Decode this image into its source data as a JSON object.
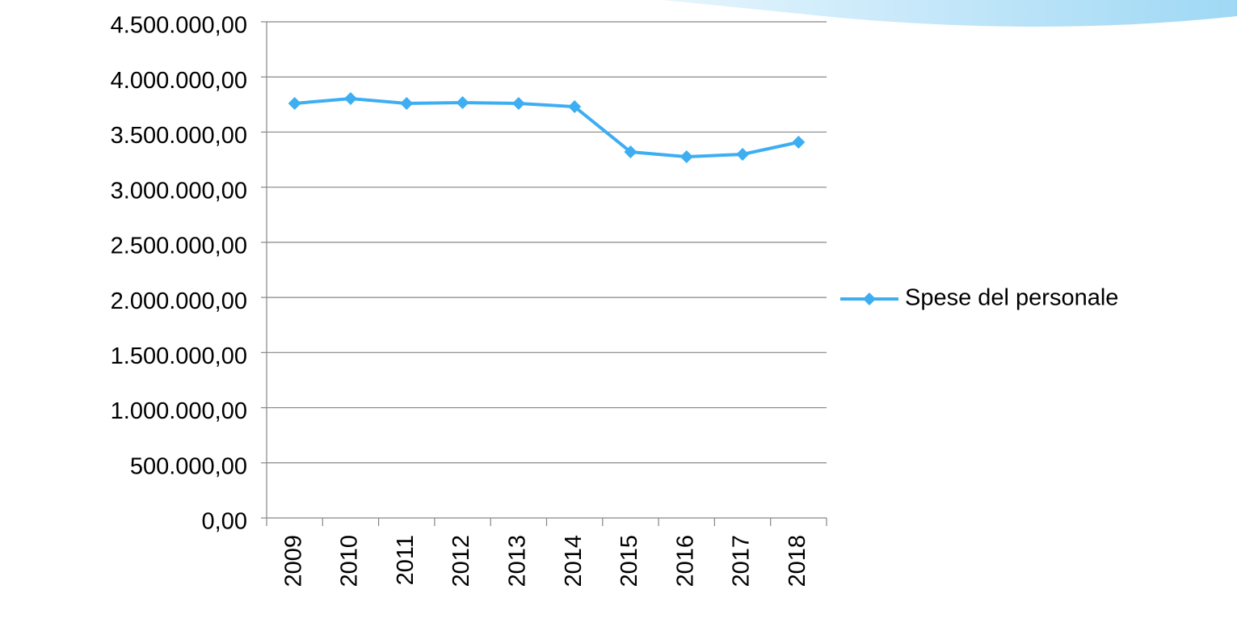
{
  "chart_data": {
    "type": "line",
    "categories": [
      "2009",
      "2010",
      "2011",
      "2012",
      "2013",
      "2014",
      "2015",
      "2016",
      "2017",
      "2018"
    ],
    "series": [
      {
        "name": "Spese del personale",
        "color": "#3daef2",
        "values": [
          3760000,
          3804000,
          3760000,
          3767000,
          3760000,
          3730000,
          3320000,
          3276000,
          3298000,
          3408000
        ]
      }
    ],
    "ylim": [
      0,
      4500000
    ],
    "yticks": [
      {
        "value": 0,
        "label": "0,00"
      },
      {
        "value": 500000,
        "label": "500.000,00"
      },
      {
        "value": 1000000,
        "label": "1.000.000,00"
      },
      {
        "value": 1500000,
        "label": "1.500.000,00"
      },
      {
        "value": 2000000,
        "label": "2.000.000,00"
      },
      {
        "value": 2500000,
        "label": "2.500.000,00"
      },
      {
        "value": 3000000,
        "label": "3.000.000,00"
      },
      {
        "value": 3500000,
        "label": "3.500.000,00"
      },
      {
        "value": 4000000,
        "label": "4.000.000,00"
      },
      {
        "value": 4500000,
        "label": "4.500.000,00"
      }
    ],
    "grid": true,
    "legend": "right"
  }
}
